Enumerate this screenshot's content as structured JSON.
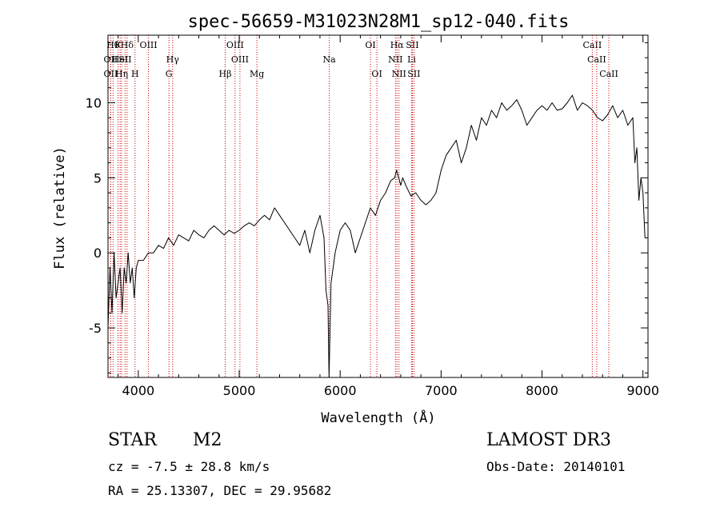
{
  "chart_data": {
    "type": "line",
    "title": "spec-56659-M31023N28M1_sp12-040.fits",
    "xlabel": "Wavelength (Å)",
    "ylabel": "Flux (relative)",
    "xlim": [
      3700,
      9050
    ],
    "ylim": [
      -8.3,
      14.5
    ],
    "xticks": [
      4000,
      5000,
      6000,
      7000,
      8000,
      9000
    ],
    "yticks": [
      -5,
      0,
      5,
      10
    ],
    "grid": false,
    "legend": "none",
    "series": [
      {
        "x": [
          3700,
          3720,
          3740,
          3760,
          3780,
          3800,
          3820,
          3840,
          3860,
          3880,
          3900,
          3920,
          3940,
          3960,
          3980,
          4000,
          4050,
          4100,
          4150,
          4200,
          4250,
          4300,
          4350,
          4400,
          4450,
          4500,
          4550,
          4600,
          4650,
          4700,
          4750,
          4800,
          4850,
          4900,
          4950,
          5000,
          5050,
          5100,
          5150,
          5200,
          5250,
          5300,
          5350,
          5400,
          5450,
          5500,
          5550,
          5600,
          5650,
          5700,
          5750,
          5800,
          5840,
          5860,
          5880,
          5890,
          5900,
          5910,
          5930,
          5950,
          6000,
          6050,
          6100,
          6150,
          6200,
          6250,
          6300,
          6350,
          6400,
          6450,
          6500,
          6540,
          6560,
          6580,
          6600,
          6620,
          6650,
          6700,
          6750,
          6800,
          6850,
          6900,
          6950,
          7000,
          7050,
          7100,
          7150,
          7200,
          7250,
          7300,
          7350,
          7400,
          7450,
          7500,
          7550,
          7600,
          7650,
          7700,
          7750,
          7800,
          7850,
          7900,
          7950,
          8000,
          8050,
          8100,
          8150,
          8200,
          8250,
          8300,
          8350,
          8400,
          8450,
          8500,
          8550,
          8600,
          8650,
          8700,
          8750,
          8800,
          8850,
          8900,
          8920,
          8940,
          8960,
          8980,
          9000,
          9020
        ],
        "y": [
          -5,
          -1,
          -4,
          0,
          -3,
          -2,
          -1,
          -4,
          -1,
          -2,
          0,
          -2,
          -1,
          -3,
          -1,
          -0.5,
          -0.5,
          0,
          0,
          0.5,
          0.3,
          1,
          0.5,
          1.2,
          1,
          0.8,
          1.5,
          1.2,
          1,
          1.5,
          1.8,
          1.5,
          1.2,
          1.5,
          1.3,
          1.5,
          1.8,
          2,
          1.8,
          2.2,
          2.5,
          2.2,
          3,
          2.5,
          2,
          1.5,
          1,
          0.5,
          1.5,
          0,
          1.5,
          2.5,
          1,
          -2.5,
          -3.5,
          -8.3,
          -5,
          -2,
          -1,
          0,
          1.5,
          2,
          1.5,
          0,
          1,
          2,
          3,
          2.5,
          3.5,
          4,
          4.8,
          5,
          5.5,
          5,
          4.5,
          5,
          4.5,
          3.8,
          4,
          3.5,
          3.2,
          3.5,
          4,
          5.5,
          6.5,
          7,
          7.5,
          6,
          7,
          8.5,
          7.5,
          9,
          8.5,
          9.5,
          9,
          10,
          9.5,
          9.8,
          10.2,
          9.5,
          8.5,
          9,
          9.5,
          9.8,
          9.5,
          10,
          9.5,
          9.6,
          10,
          10.5,
          9.5,
          10,
          9.8,
          9.5,
          9,
          8.8,
          9.2,
          9.8,
          9,
          9.5,
          8.5,
          9,
          6,
          7,
          3.5,
          5,
          4,
          1
        ]
      }
    ],
    "line_markers": [
      {
        "x": 3750,
        "label": "Hθ",
        "row": 0
      },
      {
        "x": 3799,
        "label": "K",
        "row": 0
      },
      {
        "x": 3889,
        "label": "Hδ",
        "row": 0
      },
      {
        "x": 4101,
        "label": "OIII",
        "row": 0
      },
      {
        "x": 4959,
        "label": "OIII",
        "row": 0
      },
      {
        "x": 6300,
        "label": "OI",
        "row": 0
      },
      {
        "x": 6563,
        "label": "Hα",
        "row": 0
      },
      {
        "x": 6716,
        "label": "SII",
        "row": 0
      },
      {
        "x": 8498,
        "label": "CaII",
        "row": 0
      },
      {
        "x": 3727,
        "label": "OII",
        "row": 1
      },
      {
        "x": 3820,
        "label": "HeI",
        "row": 1
      },
      {
        "x": 3869,
        "label": "SII",
        "row": 1
      },
      {
        "x": 4340,
        "label": "Hγ",
        "row": 1
      },
      {
        "x": 5007,
        "label": "OIII",
        "row": 1
      },
      {
        "x": 5892,
        "label": "Na",
        "row": 1
      },
      {
        "x": 6548,
        "label": "NII",
        "row": 1
      },
      {
        "x": 6708,
        "label": "Li",
        "row": 1
      },
      {
        "x": 8542,
        "label": "CaII",
        "row": 1
      },
      {
        "x": 3727,
        "label": "OII",
        "row": 2
      },
      {
        "x": 3835,
        "label": "Hη",
        "row": 2
      },
      {
        "x": 3968,
        "label": "H",
        "row": 2
      },
      {
        "x": 4304,
        "label": "G",
        "row": 2
      },
      {
        "x": 4861,
        "label": "Hβ",
        "row": 2
      },
      {
        "x": 5175,
        "label": "Mg",
        "row": 2
      },
      {
        "x": 6364,
        "label": "OI",
        "row": 2
      },
      {
        "x": 6583,
        "label": "NII",
        "row": 2
      },
      {
        "x": 6731,
        "label": "SII",
        "row": 2
      },
      {
        "x": 8662,
        "label": "CaII",
        "row": 2
      }
    ]
  },
  "colors": {
    "spectrum": "#000000",
    "marker_line": "#cc0000",
    "axis": "#000000"
  },
  "info": {
    "object_type": "STAR",
    "subclass": "M2",
    "survey": "LAMOST DR3",
    "redshift_line": "cz = -7.5 ± 28.8 km/s",
    "obs_date_line": "Obs-Date: 20140101",
    "coords_line": "RA =  25.13307, DEC =  29.95682"
  }
}
